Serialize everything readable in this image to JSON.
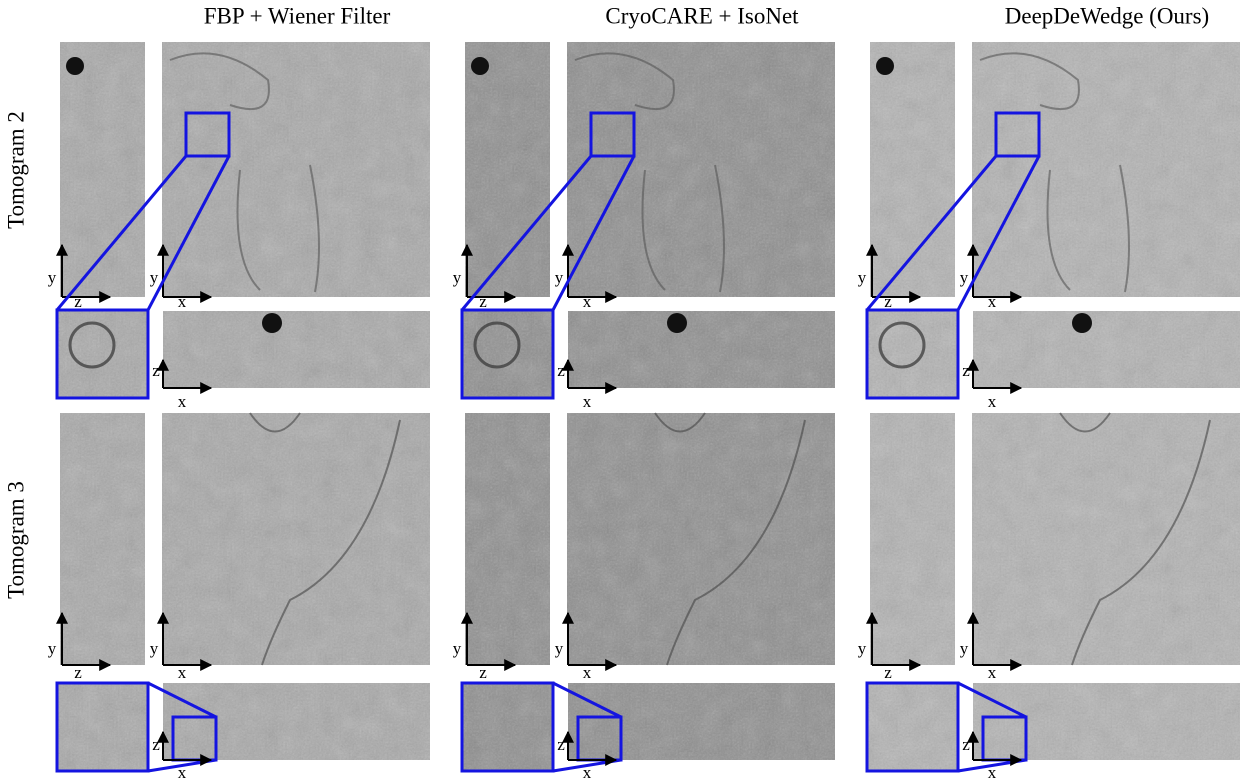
{
  "columns": [
    {
      "title": "FBP + Wiener Filter"
    },
    {
      "title": "CryoCARE + IsoNet"
    },
    {
      "title": "DeepDeWedge (Ours)"
    }
  ],
  "rows": [
    {
      "label": "Tomogram 2"
    },
    {
      "label": "Tomogram 3"
    }
  ],
  "axis_labels": {
    "x": "x",
    "y": "y",
    "z": "z"
  }
}
